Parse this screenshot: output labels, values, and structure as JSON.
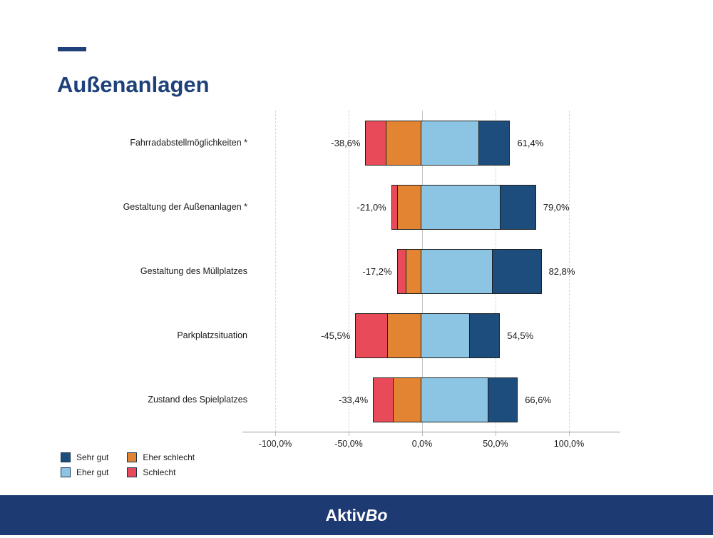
{
  "slide": {
    "title": "Außenanlagen",
    "accent_color": "#1f4179"
  },
  "footer": {
    "brand_regular": "Aktiv",
    "brand_italic": "Bo",
    "bg_color": "#1e3a72",
    "text_color": "#ffffff"
  },
  "chart_data": {
    "type": "diverging_stacked_bar",
    "orientation": "horizontal",
    "categories": [
      "Fahrradabstellmöglichkeiten *",
      "Gestaltung der Außenanlagen *",
      "Gestaltung des Müllplatzes",
      "Parkplatzsituation",
      "Zustand des Spielplatzes"
    ],
    "series": [
      {
        "name": "Schlecht",
        "side": "negative",
        "color": "#e94a59",
        "values": [
          14.5,
          4.3,
          6.6,
          22.3,
          14.0
        ]
      },
      {
        "name": "Eher schlecht",
        "side": "negative",
        "color": "#e28432",
        "values": [
          24.1,
          16.7,
          10.6,
          23.2,
          19.4
        ]
      },
      {
        "name": "Eher gut",
        "side": "positive",
        "color": "#8bc5e3",
        "values": [
          40.0,
          54.5,
          48.8,
          33.4,
          46.3
        ]
      },
      {
        "name": "Sehr gut",
        "side": "positive",
        "color": "#1d4d7c",
        "values": [
          21.4,
          24.5,
          34.0,
          21.1,
          20.3
        ]
      }
    ],
    "negative_totals": [
      -38.6,
      -21.0,
      -17.2,
      -45.5,
      -33.4
    ],
    "positive_totals": [
      61.4,
      79.0,
      82.8,
      54.5,
      66.6
    ],
    "negative_labels": [
      "-38,6%",
      "-21,0%",
      "-17,2%",
      "-45,5%",
      "-33,4%"
    ],
    "positive_labels": [
      "61,4%",
      "79,0%",
      "82,8%",
      "54,5%",
      "66,6%"
    ],
    "x_ticks": [
      {
        "value": -100,
        "label": "-100,0%"
      },
      {
        "value": -50,
        "label": "-50,0%"
      },
      {
        "value": 0,
        "label": "0,0%"
      },
      {
        "value": 50,
        "label": "50,0%"
      },
      {
        "value": 100,
        "label": "100,0%"
      }
    ],
    "xlim": [
      -125,
      135
    ],
    "grid": "vertical-dashed, solid zero line",
    "legend_position": "bottom-left",
    "legend": [
      {
        "label": "Sehr gut",
        "color": "#1d4d7c"
      },
      {
        "label": "Eher gut",
        "color": "#8bc5e3"
      },
      {
        "label": "Eher schlecht",
        "color": "#e28432"
      },
      {
        "label": "Schlecht",
        "color": "#e94a59"
      }
    ]
  }
}
